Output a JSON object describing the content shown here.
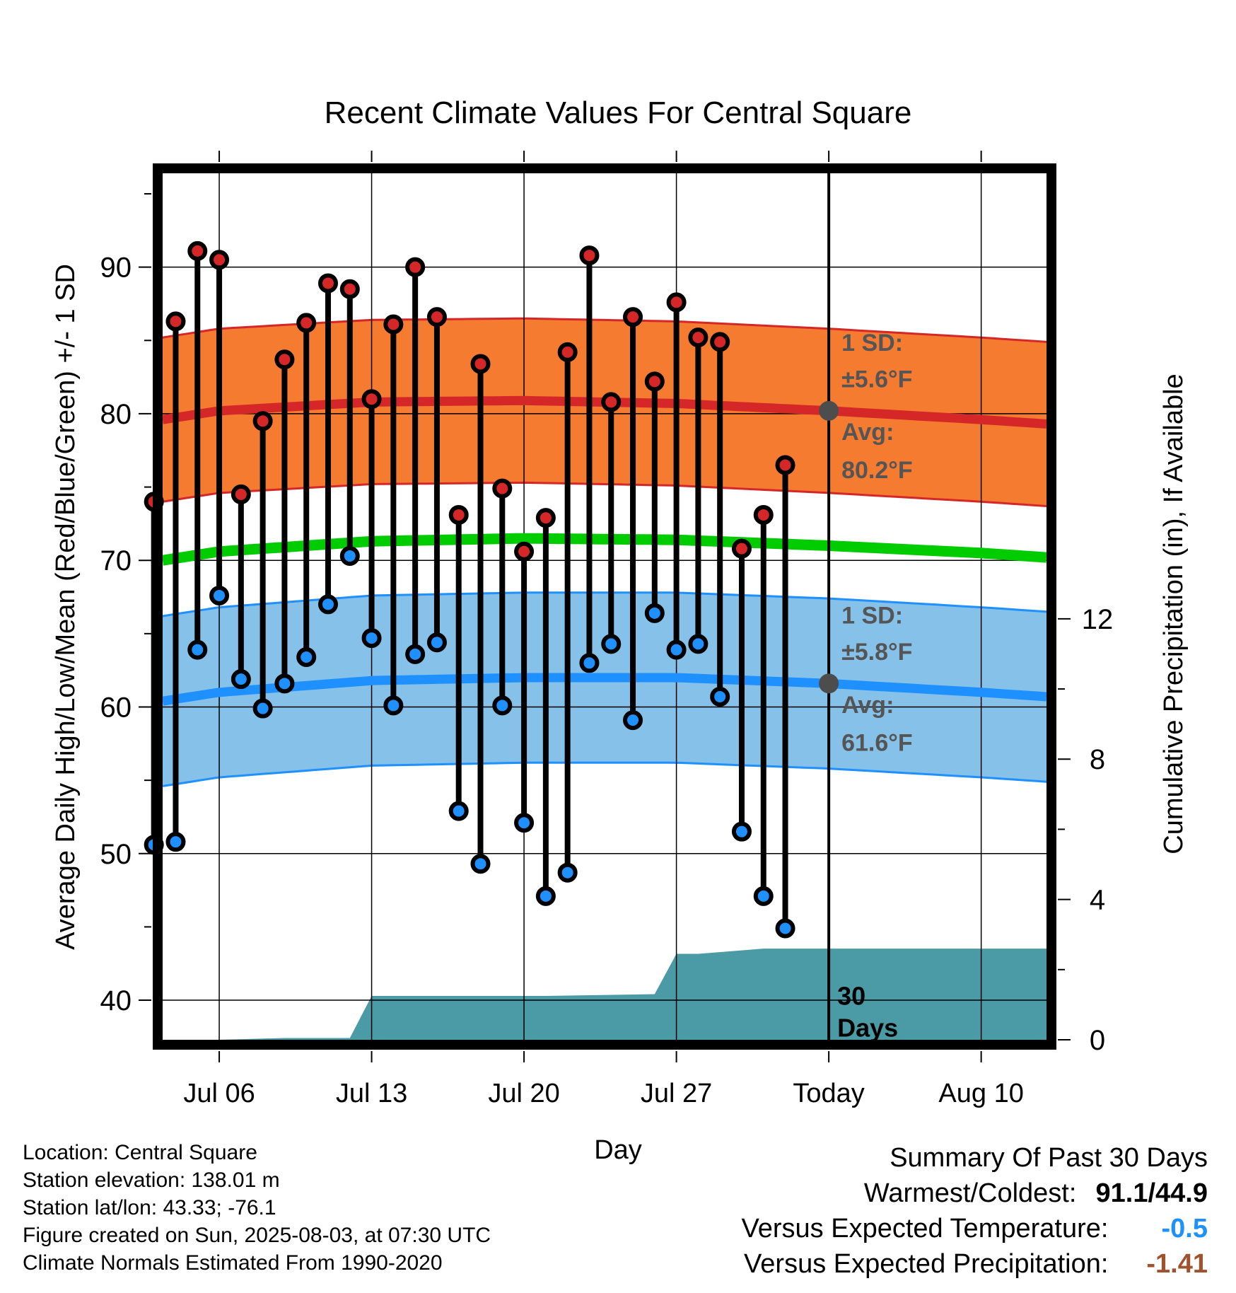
{
  "chart_data": {
    "type": "line",
    "title": "Recent Climate Values For Central Square",
    "xlabel": "Day",
    "ylabel": "Average Daily High/Low/Mean (Red/Blue/Green) +/- 1 SD",
    "y2label": "Cumulative Precipitation (in), If Available",
    "ylim": [
      37.3,
      96.4
    ],
    "y2lim": [
      0,
      24.7
    ],
    "xlim_days_from_jul01": [
      2.4,
      43.0
    ],
    "x_tick_labels": [
      "Jul 06",
      "Jul 13",
      "Jul 20",
      "Jul 27",
      "Today",
      "Aug 10"
    ],
    "x_tick_days_from_jul01": [
      5,
      12,
      19,
      26,
      33,
      40
    ],
    "y_ticks": [
      40,
      50,
      60,
      70,
      80,
      90
    ],
    "y2_ticks": [
      0,
      4,
      8,
      12
    ],
    "grid": true,
    "days": [
      "Jul 03",
      "Jul 04",
      "Jul 05",
      "Jul 06",
      "Jul 07",
      "Jul 08",
      "Jul 09",
      "Jul 10",
      "Jul 11",
      "Jul 12",
      "Jul 13",
      "Jul 14",
      "Jul 15",
      "Jul 16",
      "Jul 17",
      "Jul 18",
      "Jul 19",
      "Jul 20",
      "Jul 21",
      "Jul 22",
      "Jul 23",
      "Jul 24",
      "Jul 25",
      "Jul 26",
      "Jul 27",
      "Jul 28",
      "Jul 29",
      "Jul 30",
      "Jul 31",
      "Aug 01",
      "Aug 02"
    ],
    "days_from_jul01": [
      2,
      3,
      4,
      5,
      6,
      7,
      8,
      9,
      10,
      11,
      12,
      13,
      14,
      15,
      16,
      17,
      18,
      19,
      20,
      21,
      22,
      23,
      24,
      25,
      26,
      27,
      28,
      29,
      30,
      31,
      32
    ],
    "series": [
      {
        "name": "High",
        "color": "#d62728",
        "values": [
          74.0,
          86.3,
          91.1,
          90.5,
          74.5,
          79.5,
          83.7,
          86.2,
          88.9,
          88.5,
          81.0,
          86.1,
          90.0,
          86.6,
          73.1,
          83.4,
          74.9,
          70.6,
          72.9,
          84.2,
          90.8,
          80.8,
          86.6,
          82.2,
          87.6,
          85.2,
          84.9,
          70.8,
          73.1,
          76.5,
          null
        ]
      },
      {
        "name": "Low",
        "color": "#1e90ff",
        "values": [
          50.6,
          50.8,
          63.9,
          67.6,
          61.9,
          59.9,
          61.6,
          63.4,
          67.0,
          70.3,
          64.7,
          60.1,
          63.6,
          64.4,
          52.9,
          49.3,
          60.1,
          52.1,
          47.1,
          48.7,
          63.0,
          64.3,
          59.1,
          66.4,
          63.9,
          64.3,
          60.7,
          51.5,
          47.1,
          44.9,
          null
        ]
      }
    ],
    "normals": {
      "x_days_from_jul01": [
        2.4,
        5,
        12,
        19,
        26,
        33,
        40,
        43.0
      ],
      "high_mean": [
        79.6,
        80.2,
        80.8,
        80.9,
        80.7,
        80.2,
        79.6,
        79.3
      ],
      "high_sd": 5.6,
      "low_mean": [
        60.4,
        61.0,
        61.8,
        62.0,
        62.0,
        61.6,
        61.0,
        60.7
      ],
      "low_sd": 5.8,
      "mean": [
        70.0,
        70.6,
        71.3,
        71.5,
        71.4,
        71.0,
        70.5,
        70.2
      ],
      "colors": {
        "high_band": "#f47b30",
        "high_line": "#d62728",
        "low_band": "#85c1e9",
        "low_line": "#1e90ff",
        "mean_line": "#00cc00"
      }
    },
    "precip": {
      "color": "#4a9ba5",
      "x_days_from_jul01": [
        2.4,
        5.0,
        8.0,
        11.0,
        12.0,
        16.0,
        20.0,
        25.0,
        26.0,
        27.0,
        30.0,
        34.0,
        43.0
      ],
      "values": [
        0,
        0,
        0.05,
        0.05,
        1.25,
        1.25,
        1.25,
        1.3,
        2.45,
        2.45,
        2.6,
        2.6,
        2.6
      ]
    },
    "annotations": {
      "high_sd_label": "1 SD:",
      "high_sd_value": "±5.6°F",
      "high_avg_label": "Avg:",
      "high_avg_value": "80.2°F",
      "low_sd_label": "1 SD:",
      "low_sd_value": "±5.8°F",
      "low_avg_label": "Avg:",
      "low_avg_value": "61.6°F",
      "today_high_avg": 80.2,
      "today_low_avg": 61.6,
      "window_label_1": "30",
      "window_label_2": "Days"
    }
  },
  "info": {
    "location": "Location: Central Square",
    "elevation": "Station elevation: 138.01 m",
    "latlon": "Station lat/lon: 43.33; -76.1",
    "created": "Figure created on Sun, 2025-08-03, at 07:30 UTC",
    "normals": "Climate Normals Estimated From 1990-2020"
  },
  "summary": {
    "heading": "Summary Of Past 30 Days",
    "warmest_coldest_label": "Warmest/Coldest:",
    "warmest_coldest_value": "91.1/44.9",
    "temp_label": "Versus Expected Temperature:",
    "temp_value": "-0.5",
    "temp_color": "#1e90ff",
    "precip_label": "Versus Expected Precipitation:",
    "precip_value": "-1.41",
    "precip_color": "#a0522d"
  }
}
